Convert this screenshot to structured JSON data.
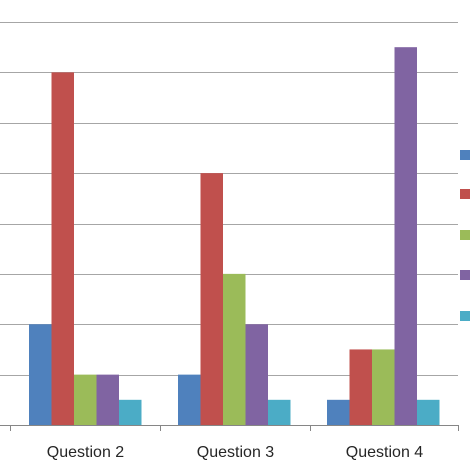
{
  "chart_data": {
    "type": "bar",
    "title": "",
    "xlabel": "",
    "ylabel": "",
    "categories": [
      "Question 2",
      "Question 3",
      "Question 4"
    ],
    "series": [
      {
        "color": "#4f81bd",
        "values": [
          2,
          1,
          0.5
        ]
      },
      {
        "color": "#c0504d",
        "values": [
          7,
          5,
          1.5
        ]
      },
      {
        "color": "#9bbb59",
        "values": [
          1,
          3,
          1.5
        ]
      },
      {
        "color": "#8064a2",
        "values": [
          1,
          2,
          7.5
        ]
      },
      {
        "color": "#4bacc6",
        "values": [
          0.5,
          0.5,
          0.5
        ]
      }
    ],
    "ylim": [
      0,
      8
    ],
    "grid": true,
    "legend_position": "right",
    "legend_labels_visible": false,
    "colors": {
      "gridline": "#a6a6a6",
      "axis": "#868686",
      "text": "#262626"
    }
  }
}
